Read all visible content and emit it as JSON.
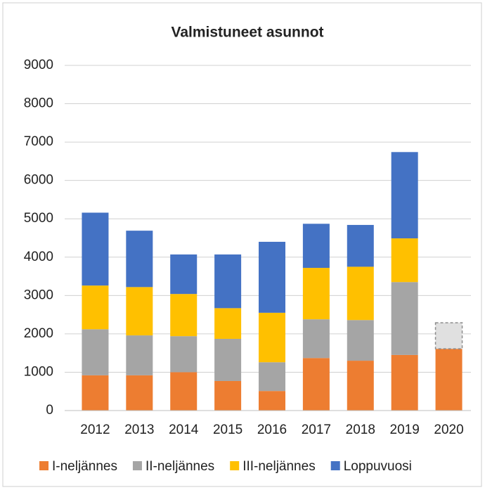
{
  "chart_data": {
    "type": "stacked-bar",
    "title": "Valmistuneet asunnot",
    "categories": [
      "2012",
      "2013",
      "2014",
      "2015",
      "2016",
      "2017",
      "2018",
      "2019",
      "2020"
    ],
    "series": [
      {
        "name": "I-neljännes",
        "color": "#ed7d31",
        "values": [
          920,
          920,
          1000,
          770,
          510,
          1370,
          1300,
          1450,
          1610
        ]
      },
      {
        "name": "II-neljännes",
        "color": "#a5a5a5",
        "values": [
          1200,
          1040,
          940,
          1100,
          750,
          1010,
          1060,
          1900,
          null
        ]
      },
      {
        "name": "III-neljännes",
        "color": "#ffc000",
        "values": [
          1140,
          1260,
          1100,
          800,
          1290,
          1340,
          1390,
          1140,
          null
        ]
      },
      {
        "name": "Loppuvuosi",
        "color": "#4472c4",
        "values": [
          1900,
          1470,
          1030,
          1400,
          1850,
          1150,
          1090,
          2250,
          null
        ]
      },
      {
        "color": "#e0e0e0",
        "dashed": true,
        "values": [
          null,
          null,
          null,
          null,
          null,
          null,
          null,
          null,
          680
        ]
      }
    ],
    "ylim": [
      0,
      9000
    ],
    "yticks": [
      0,
      1000,
      2000,
      3000,
      4000,
      5000,
      6000,
      7000,
      8000,
      9000
    ],
    "grid": true,
    "legend": "bottom"
  }
}
